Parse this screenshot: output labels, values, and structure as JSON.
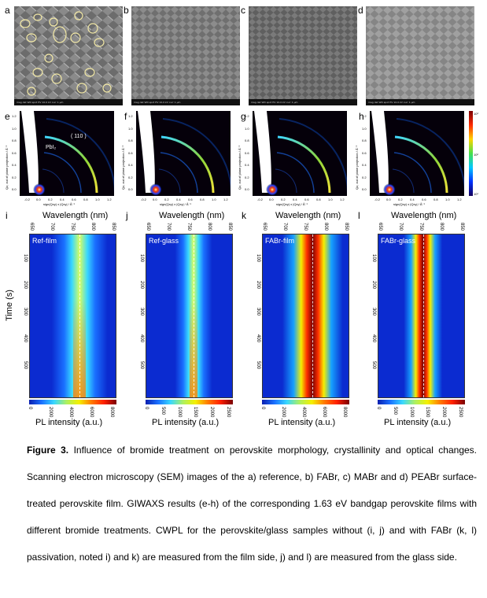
{
  "sem_labels": [
    "a",
    "b",
    "c",
    "d"
  ],
  "sem_databar": "mag  det  WD  spot  HV  10.0 kV  curr  1 µm",
  "giwaxs_labels": [
    "e",
    "f",
    "g",
    "h"
  ],
  "giwaxs_annotations": {
    "peak_110": "( 110 )",
    "pbi2": "PbI₂"
  },
  "giwaxs_axes": {
    "ylabel": "Qz, out of plane projection / Å⁻¹",
    "xlabel": "sign(Qxy) x |Qxy| / Å⁻¹",
    "yticks": [
      "1.2",
      "1.0",
      "0.8",
      "0.6",
      "0.4",
      "0.2",
      "0.0"
    ],
    "xticks": [
      "-0.2",
      "0.0",
      "0.2",
      "0.4",
      "0.6",
      "0.8",
      "1.0",
      "1.2"
    ],
    "colorbar_ticks": [
      "10³",
      "10²",
      "10¹"
    ]
  },
  "pl_labels": [
    "i",
    "j",
    "k",
    "l"
  ],
  "pl_panels": [
    {
      "name": "Ref-film",
      "wl_title": "Wavelength (nm)",
      "pl_title": "PL intensity (a.u.)",
      "cb_ticks": [
        "0",
        "2000",
        "4000",
        "6000",
        "8000"
      ]
    },
    {
      "name": "Ref-glass",
      "wl_title": "Wavelength (nm)",
      "pl_title": "PL intensity (a.u.)",
      "cb_ticks": [
        "0",
        "500",
        "1000",
        "1500",
        "2000",
        "2500"
      ]
    },
    {
      "name": "FABr-film",
      "wl_title": "Wavelength (nm)",
      "pl_title": "PL intensity (a.u.)",
      "cb_ticks": [
        "0",
        "2000",
        "4000",
        "6000",
        "8000"
      ]
    },
    {
      "name": "FABr-glass",
      "wl_title": "Wavelength (nm)",
      "pl_title": "PL intensity (a.u.)",
      "cb_ticks": [
        "0",
        "500",
        "1000",
        "1500",
        "2000",
        "2500"
      ]
    }
  ],
  "wl_ticks": [
    "650",
    "700",
    "750",
    "800",
    "850"
  ],
  "time_ticks": [
    "100",
    "200",
    "300",
    "400",
    "500"
  ],
  "time_label": "Time (s)",
  "caption": {
    "figure_label": "Figure 3.",
    "text": " Influence of bromide treatment on perovskite morphology, crystallinity and optical changes.  Scanning electron microscopy (SEM) images of the a) reference, b) FABr, c) MABr and d) PEABr surface-treated perovskite film. GIWAXS results (e-h) of the corresponding 1.63 eV bandgap perovskite films with different bromide treatments. CWPL for the perovskite/glass samples without (i, j) and with FABr (k, l) passivation, noted i) and k) are measured from the film side, j) and l) are measured from the glass side."
  },
  "colors": {
    "pl_background": "#0b2bd0",
    "highlight_circle": "#f3e9a6",
    "giwaxs_ring": "#8fd63a"
  }
}
